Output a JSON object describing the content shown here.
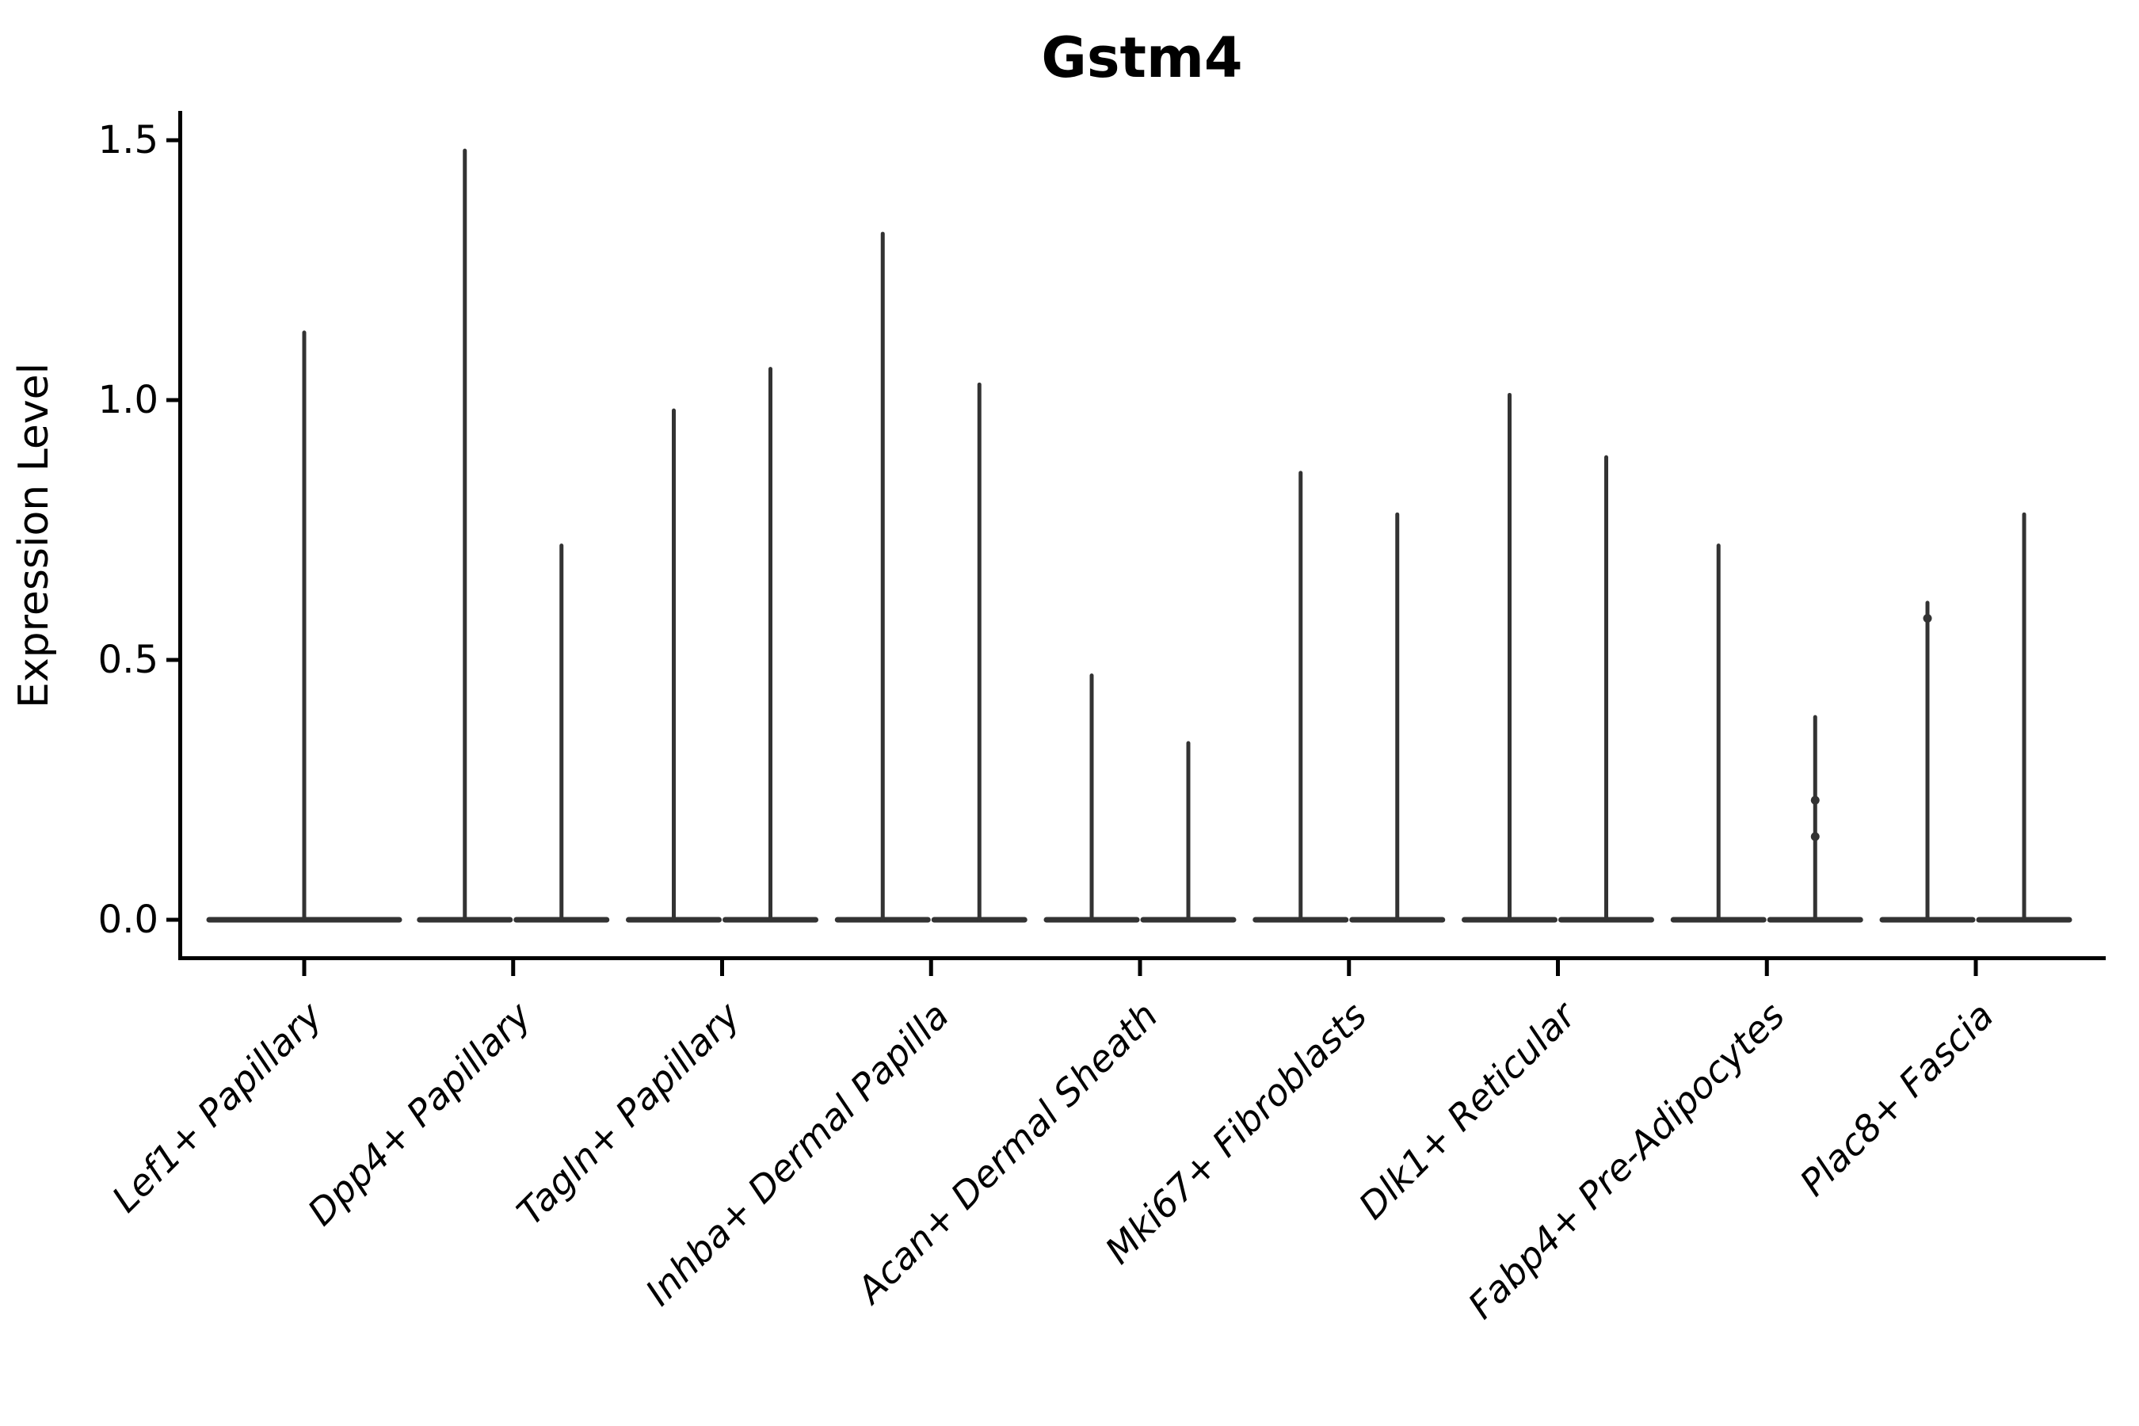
{
  "figure": {
    "background": "#ffffff"
  },
  "chart_data": {
    "type": "violin",
    "title": "Gstm4",
    "xlabel": "",
    "ylabel": "Expression Level",
    "ylim": [
      -0.08,
      1.56
    ],
    "yticks": [
      0.0,
      0.5,
      1.0,
      1.5
    ],
    "ytick_labels": [
      "0.0",
      "0.5",
      "1.0",
      "1.5"
    ],
    "grid": false,
    "legend": null,
    "violin_color": "#333333",
    "axis_color": "#000000",
    "x_tick_label_rotation_deg": 45,
    "description": "Violin plot of Gstm4 expression; each violin is a wide flat base at 0 with a thin spike to its maximum expression value. Single-violin category is centered; two-violin categories are side by side.",
    "categories": [
      {
        "label": "Lef1+ Papillary",
        "violins": [
          {
            "position": "center",
            "max": 1.13
          }
        ]
      },
      {
        "label": "Dpp4+ Papillary",
        "violins": [
          {
            "position": "left",
            "max": 1.48
          },
          {
            "position": "right",
            "max": 0.72
          }
        ]
      },
      {
        "label": "Tagln+ Papillary",
        "violins": [
          {
            "position": "left",
            "max": 0.98
          },
          {
            "position": "right",
            "max": 1.06
          }
        ]
      },
      {
        "label": "Inhba+ Dermal Papilla",
        "violins": [
          {
            "position": "left",
            "max": 1.32
          },
          {
            "position": "right",
            "max": 1.03
          }
        ]
      },
      {
        "label": "Acan+ Dermal Sheath",
        "violins": [
          {
            "position": "left",
            "max": 0.47
          },
          {
            "position": "right",
            "max": 0.34
          }
        ]
      },
      {
        "label": "Mki67+ Fibroblasts",
        "violins": [
          {
            "position": "left",
            "max": 0.86
          },
          {
            "position": "right",
            "max": 0.78
          }
        ]
      },
      {
        "label": "Dlk1+ Reticular",
        "violins": [
          {
            "position": "left",
            "max": 1.01
          },
          {
            "position": "right",
            "max": 0.89
          }
        ]
      },
      {
        "label": "Fabp4+ Pre-Adipocytes",
        "violins": [
          {
            "position": "left",
            "max": 0.72
          },
          {
            "position": "right",
            "max": 0.39,
            "points": [
              0.23,
              0.16
            ]
          }
        ]
      },
      {
        "label": "Plac8+ Fascia",
        "violins": [
          {
            "position": "left",
            "max": 0.61,
            "points": [
              0.58
            ]
          },
          {
            "position": "right",
            "max": 0.78
          }
        ]
      }
    ]
  }
}
